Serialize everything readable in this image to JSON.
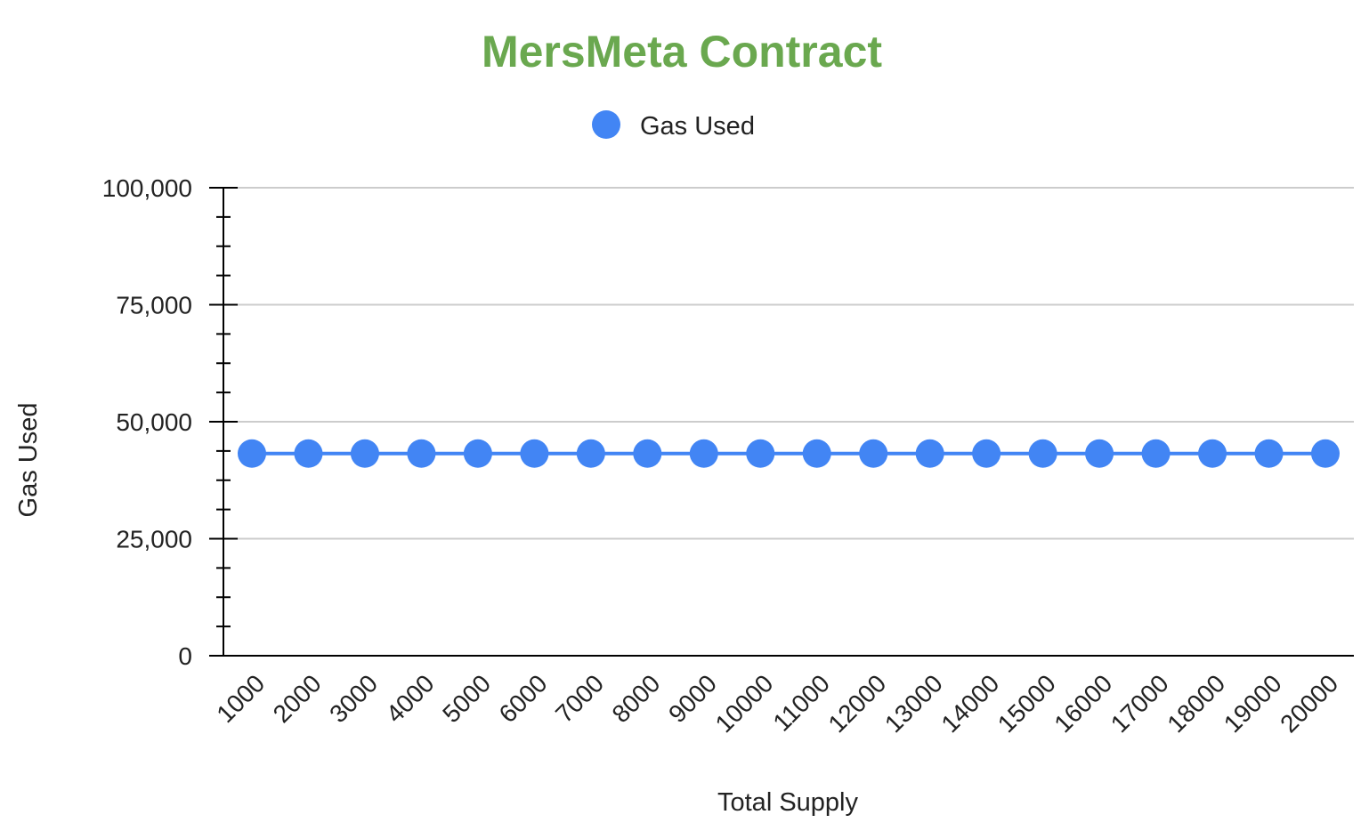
{
  "chart_data": {
    "type": "line",
    "title": "MersMeta Contract",
    "xlabel": "Total Supply",
    "ylabel": "Gas Used",
    "categories": [
      "1000",
      "2000",
      "3000",
      "4000",
      "5000",
      "6000",
      "7000",
      "8000",
      "9000",
      "10000",
      "11000",
      "12000",
      "13000",
      "14000",
      "15000",
      "16000",
      "17000",
      "18000",
      "19000",
      "20000"
    ],
    "series": [
      {
        "name": "Gas Used",
        "color": "#4285F4",
        "values": [
          43200,
          43200,
          43200,
          43200,
          43200,
          43200,
          43200,
          43200,
          43200,
          43200,
          43200,
          43200,
          43200,
          43200,
          43200,
          43200,
          43200,
          43200,
          43200,
          43200
        ]
      }
    ],
    "ylim": [
      0,
      100000
    ],
    "yticks": [
      "0",
      "25,000",
      "50,000",
      "75,000",
      "100,000"
    ],
    "ytick_values": [
      0,
      25000,
      50000,
      75000,
      100000
    ],
    "grid": true,
    "legend_position": "top-center",
    "colors": {
      "title": "#6AA84F",
      "grid": "#CCCCCC",
      "axis": "#000000",
      "series": "#4285F4"
    }
  }
}
